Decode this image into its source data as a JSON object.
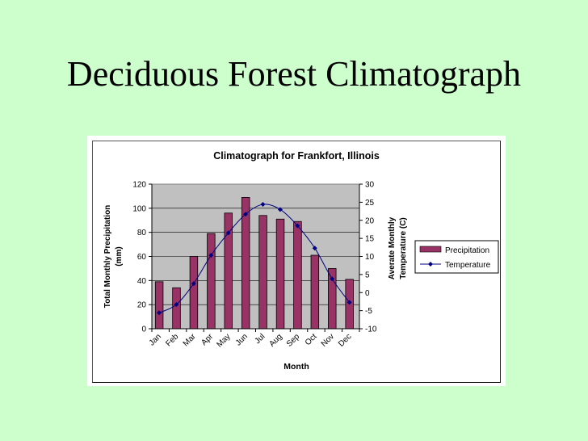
{
  "slide": {
    "title": "Deciduous Forest Climatograph",
    "background": "#ccffcc"
  },
  "chart_data": {
    "type": "bar+line",
    "title": "Climatograph for Frankfort, Illinois",
    "categories": [
      "Jan",
      "Feb",
      "Mar",
      "Apr",
      "May",
      "Jun",
      "Jul",
      "Aug",
      "Sep",
      "Oct",
      "Nov",
      "Dec"
    ],
    "series": [
      {
        "name": "Precipitation",
        "type": "bar",
        "axis": "left",
        "color": "#993366",
        "values": [
          39,
          34,
          60,
          79,
          96,
          109,
          94,
          91,
          89,
          61,
          50,
          41
        ]
      },
      {
        "name": "Temperature",
        "type": "line",
        "axis": "right",
        "color": "#000080",
        "values": [
          -5.6,
          -3.3,
          2.5,
          10.3,
          16.5,
          21.7,
          24.4,
          23.0,
          18.5,
          12.3,
          3.8,
          -2.7
        ]
      }
    ],
    "xlabel": "Month",
    "ylabel": "Total Monthly Precipitation (mm)",
    "ylabel_lines": [
      "Total Monthly Precipitation",
      "(mm)"
    ],
    "y2label": "Averate Monthly Temperature (C)",
    "y2label_lines": [
      "Averate Monthly",
      "Temperature (C)"
    ],
    "ylim": [
      0,
      120
    ],
    "yticks": [
      0,
      20,
      40,
      60,
      80,
      100,
      120
    ],
    "y2lim": [
      -10,
      30
    ],
    "y2ticks": [
      -10,
      -5,
      0,
      5,
      10,
      15,
      20,
      25,
      30
    ],
    "plot_background": "#c0c0c0",
    "grid": true,
    "legend_position": "right"
  }
}
